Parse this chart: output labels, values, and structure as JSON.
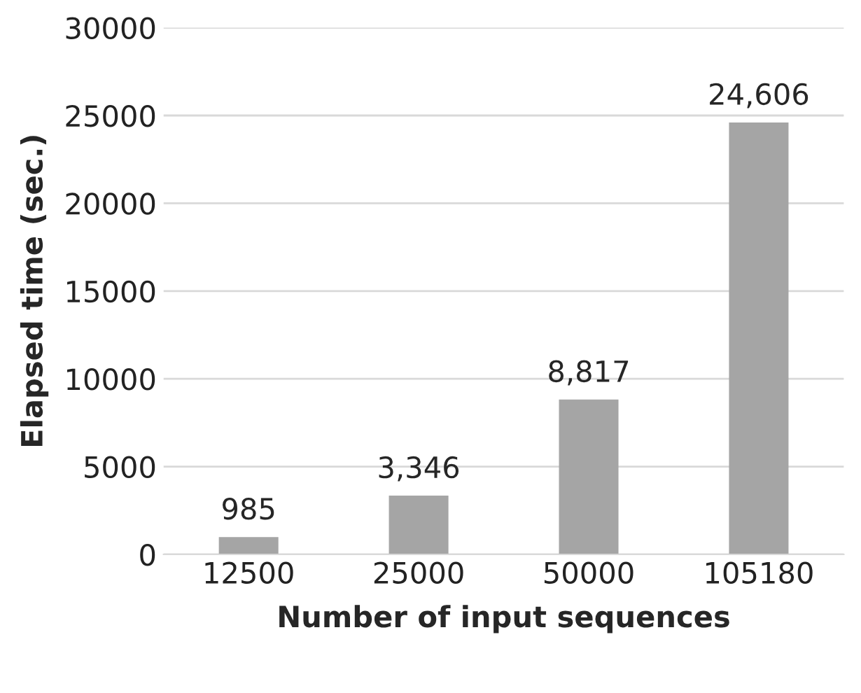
{
  "chart_data": {
    "type": "bar",
    "xlabel": "Number of input sequences",
    "ylabel": "Elapsed time (sec.)",
    "categories": [
      "12500",
      "25000",
      "50000",
      "105180"
    ],
    "values": [
      985,
      3346,
      8817,
      24606
    ],
    "value_labels": [
      "985",
      "3,346",
      "8,817",
      "24,606"
    ],
    "color": "#a5a5a5",
    "ylim": [
      0,
      30000
    ],
    "yticks": [
      0,
      5000,
      10000,
      15000,
      20000,
      25000,
      30000
    ],
    "grid": "y"
  }
}
